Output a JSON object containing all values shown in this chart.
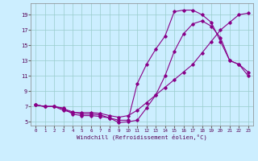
{
  "xlabel": "Windchill (Refroidissement éolien,°C)",
  "bg_color": "#cceeff",
  "line_color": "#880088",
  "xlim": [
    -0.5,
    23.5
  ],
  "ylim": [
    4.5,
    20.5
  ],
  "yticks": [
    5,
    7,
    9,
    11,
    13,
    15,
    17,
    19
  ],
  "xticks": [
    0,
    1,
    2,
    3,
    4,
    5,
    6,
    7,
    8,
    9,
    10,
    11,
    12,
    13,
    14,
    15,
    16,
    17,
    18,
    19,
    20,
    21,
    22,
    23
  ],
  "curve1_x": [
    0,
    1,
    2,
    3,
    4,
    5,
    6,
    7,
    8,
    9,
    10,
    11,
    12,
    13,
    14,
    15,
    16,
    17,
    18,
    19,
    20,
    21,
    22,
    23
  ],
  "curve1_y": [
    7.2,
    7.0,
    7.0,
    6.5,
    6.2,
    6.2,
    6.2,
    6.1,
    5.8,
    5.6,
    5.8,
    6.5,
    7.5,
    8.5,
    9.5,
    10.5,
    11.5,
    12.5,
    14.0,
    15.5,
    17.0,
    18.0,
    19.0,
    19.2
  ],
  "curve2_x": [
    0,
    1,
    2,
    3,
    4,
    5,
    6,
    7,
    8,
    9,
    10,
    11,
    12,
    13,
    14,
    15,
    16,
    17,
    18,
    19,
    20,
    21,
    22,
    23
  ],
  "curve2_y": [
    7.2,
    7.0,
    7.0,
    6.8,
    6.0,
    5.8,
    5.8,
    5.7,
    5.5,
    5.2,
    5.2,
    10.0,
    12.5,
    14.5,
    16.2,
    19.4,
    19.6,
    19.6,
    19.0,
    18.0,
    15.5,
    13.0,
    12.5,
    11.0
  ],
  "curve3_x": [
    0,
    1,
    2,
    3,
    4,
    5,
    6,
    7,
    8,
    9,
    10,
    11,
    12,
    13,
    14,
    15,
    16,
    17,
    18,
    19,
    20,
    21,
    22,
    23
  ],
  "curve3_y": [
    7.2,
    7.0,
    7.0,
    6.7,
    6.3,
    6.0,
    6.0,
    5.9,
    5.5,
    4.9,
    5.0,
    5.2,
    6.8,
    8.5,
    11.0,
    14.2,
    16.5,
    17.8,
    18.2,
    17.5,
    16.0,
    13.0,
    12.5,
    11.5
  ]
}
